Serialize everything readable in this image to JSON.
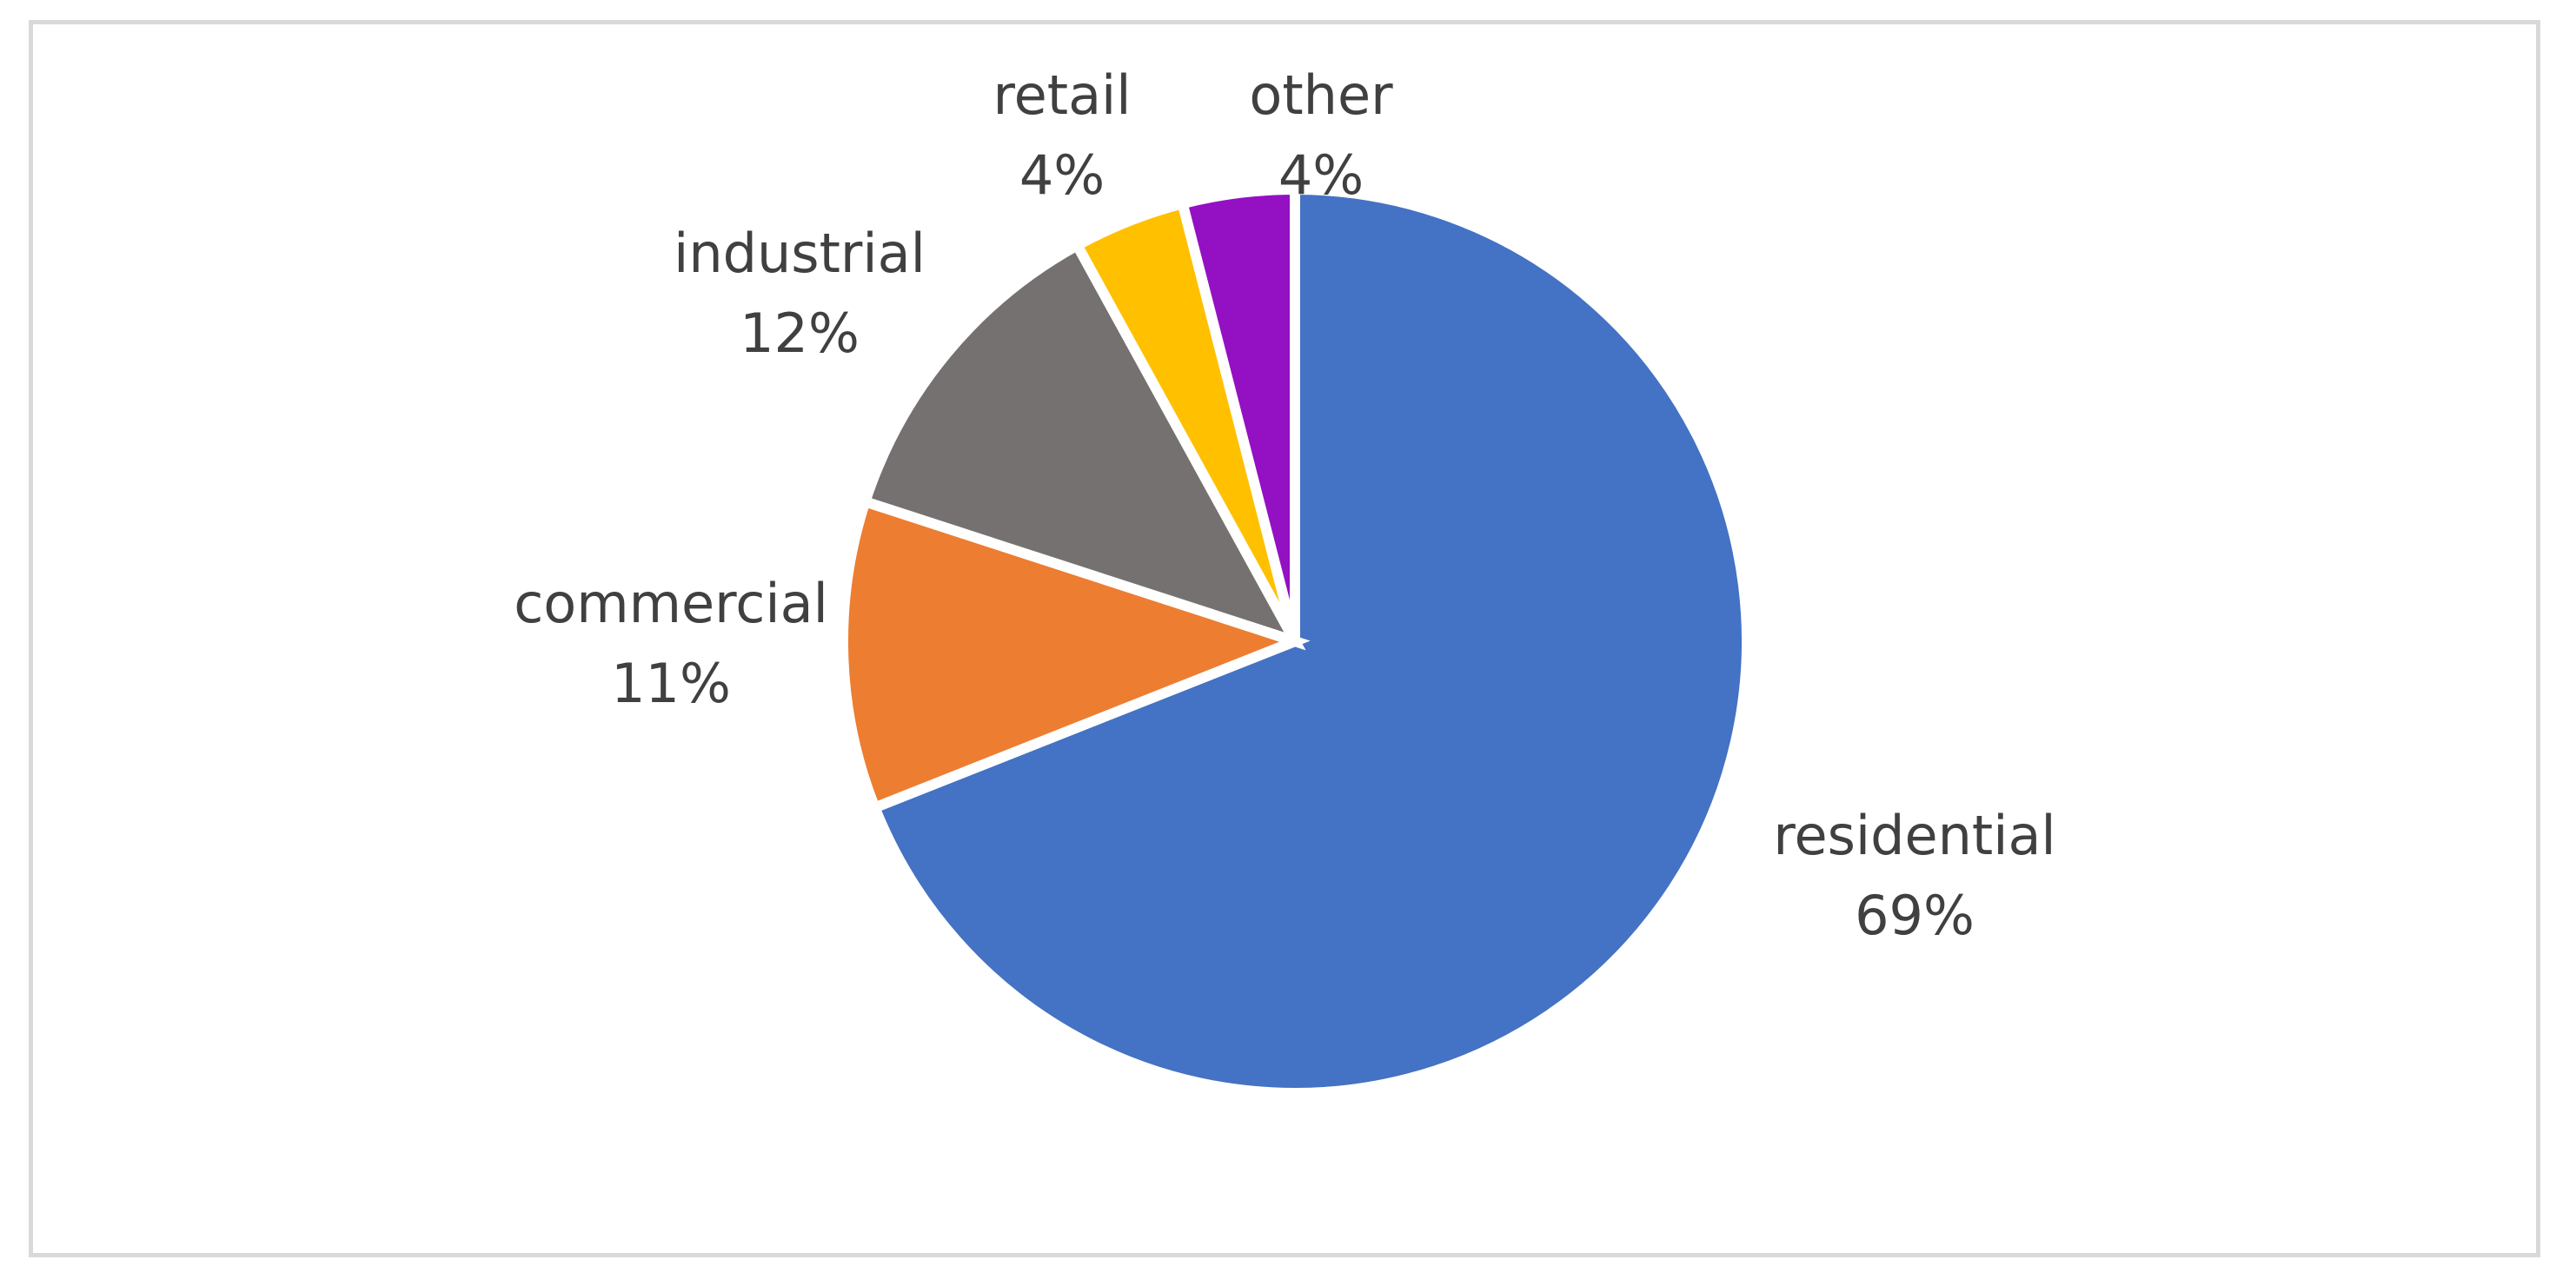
{
  "chart_data": {
    "type": "pie",
    "title": "",
    "slices": [
      {
        "label": "residential",
        "value": 69,
        "value_label": "69%",
        "color": "#4472C4"
      },
      {
        "label": "commercial",
        "value": 11,
        "value_label": "11%",
        "color": "#ED7D31"
      },
      {
        "label": "industrial",
        "value": 12,
        "value_label": "12%",
        "color": "#767171"
      },
      {
        "label": "retail",
        "value": 4,
        "value_label": "4%",
        "color": "#FFC000"
      },
      {
        "label": "other",
        "value": 4,
        "value_label": "4%",
        "color": "#9410C3"
      }
    ],
    "start_angle": "12 o'clock",
    "direction": "clockwise",
    "legend": "none",
    "data_labels": "category name and percentage"
  }
}
